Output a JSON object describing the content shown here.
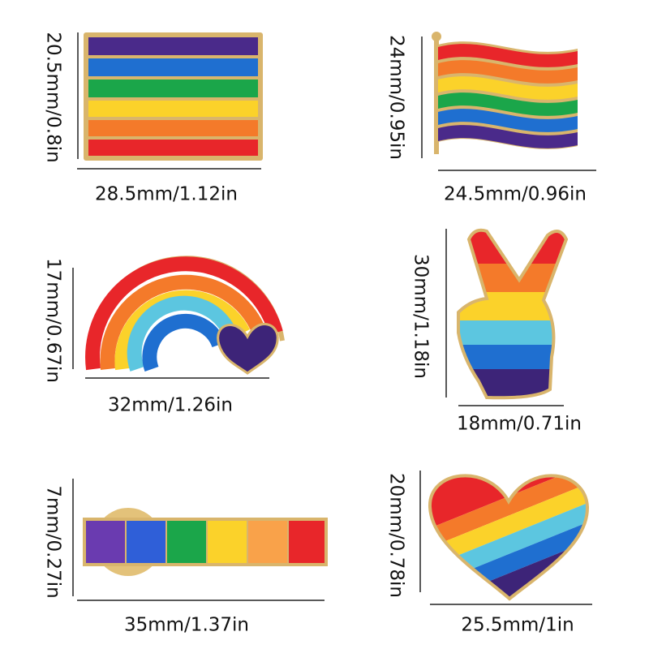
{
  "pins": [
    {
      "height": "20.5mm/0.8in",
      "width": "28.5mm/1.12in"
    },
    {
      "height": "24mm/0.95in",
      "width": "24.5mm/0.96in"
    },
    {
      "height": "17mm/0.67in",
      "width": "32mm/1.26in"
    },
    {
      "height": "30mm/1.18in",
      "width": "18mm/0.71in"
    },
    {
      "height": "7mm/0.27in",
      "width": "35mm/1.37in"
    },
    {
      "height": "20mm/0.78in",
      "width": "25.5mm/1in"
    }
  ]
}
